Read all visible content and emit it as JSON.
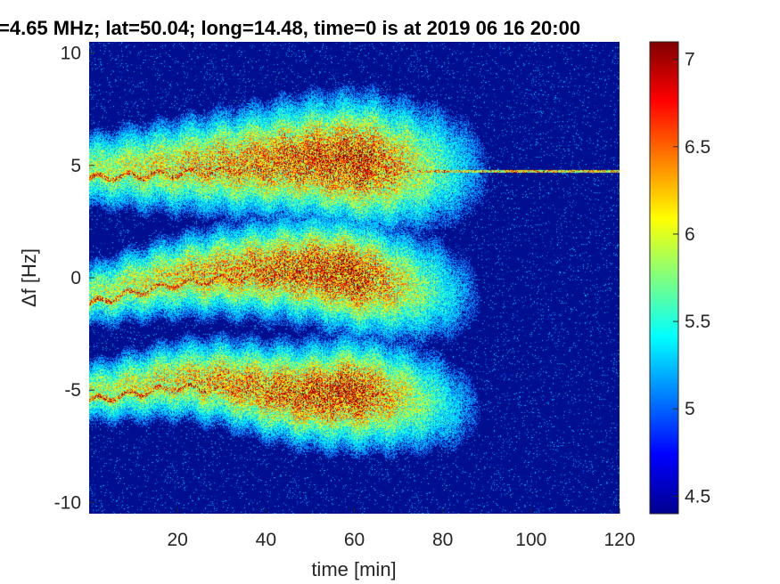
{
  "chart_data": {
    "type": "heatmap",
    "title": "=4.65 MHz;  lat=50.04; long=14.48, time=0 is at 2019 06 16 20:00",
    "xlabel": "time [min]",
    "ylabel": "Δf [Hz]",
    "xlim": [
      0,
      120
    ],
    "ylim": [
      -10.5,
      10.5
    ],
    "x_ticks": [
      "20",
      "40",
      "60",
      "80",
      "100",
      "120"
    ],
    "y_ticks": [
      "10",
      "5",
      "0",
      "-5",
      "-10"
    ],
    "colorbar": {
      "range": [
        4.4,
        7.1
      ],
      "ticks": [
        "7",
        "6.5",
        "6",
        "5.5",
        "5",
        "4.5"
      ],
      "colormap": "jet"
    },
    "background_color": "#000f8f",
    "bands": [
      {
        "name": "upper",
        "center": [
          [
            0,
            4.8
          ],
          [
            10,
            4.9
          ],
          [
            20,
            5.0
          ],
          [
            30,
            5.1
          ],
          [
            40,
            5.2
          ],
          [
            50,
            5.3
          ],
          [
            60,
            5.2
          ],
          [
            70,
            5.0
          ],
          [
            80,
            4.9
          ],
          [
            90,
            4.8
          ]
        ],
        "halfwidth_hz": 3.0,
        "peak_time": 62
      },
      {
        "name": "middle",
        "center": [
          [
            0,
            -0.8
          ],
          [
            10,
            -0.3
          ],
          [
            20,
            0.1
          ],
          [
            30,
            0.3
          ],
          [
            40,
            0.4
          ],
          [
            50,
            0.4
          ],
          [
            60,
            0.1
          ],
          [
            70,
            -0.3
          ],
          [
            80,
            -0.6
          ],
          [
            90,
            -0.9
          ]
        ],
        "halfwidth_hz": 2.6,
        "peak_time": 60
      },
      {
        "name": "lower",
        "center": [
          [
            0,
            -5.1
          ],
          [
            10,
            -4.8
          ],
          [
            20,
            -4.5
          ],
          [
            30,
            -4.6
          ],
          [
            40,
            -5.0
          ],
          [
            50,
            -5.2
          ],
          [
            60,
            -5.1
          ],
          [
            70,
            -5.3
          ],
          [
            80,
            -5.6
          ],
          [
            90,
            -6.0
          ]
        ],
        "halfwidth_hz": 2.5,
        "peak_time": 60
      }
    ],
    "carrier_line": {
      "y": 4.75,
      "x_range": [
        0,
        120
      ]
    }
  }
}
